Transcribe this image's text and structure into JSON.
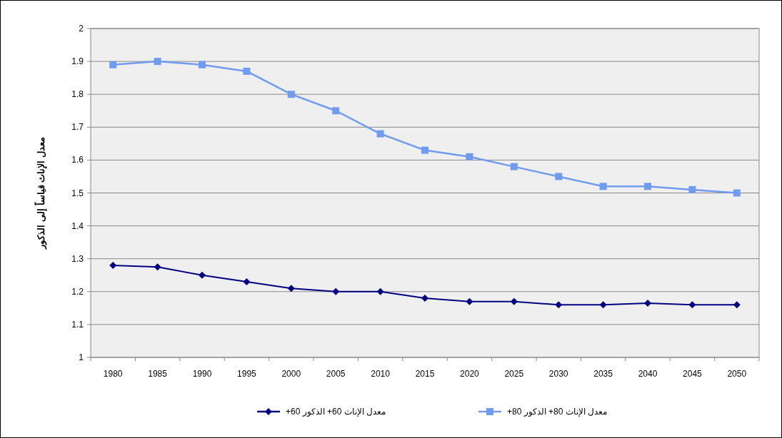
{
  "chart_data": {
    "type": "line",
    "ylabel": "معدل الإناث قياساً إلى الذكور",
    "categories": [
      "1980",
      "1985",
      "1990",
      "1995",
      "2000",
      "2005",
      "2010",
      "2015",
      "2020",
      "2025",
      "2030",
      "2035",
      "2040",
      "2045",
      "2050"
    ],
    "series": [
      {
        "name": "معدل الإناث 60+ الذكور 60+",
        "color": "#000080",
        "marker": "diamond",
        "values": [
          1.28,
          1.275,
          1.25,
          1.23,
          1.21,
          1.2,
          1.2,
          1.18,
          1.17,
          1.17,
          1.16,
          1.16,
          1.165,
          1.16,
          1.16
        ]
      },
      {
        "name": "معدل الإناث 80+ الذكور 80+",
        "color": "#6f9cf0",
        "marker": "square",
        "values": [
          1.89,
          1.9,
          1.89,
          1.87,
          1.8,
          1.75,
          1.68,
          1.63,
          1.61,
          1.58,
          1.55,
          1.52,
          1.52,
          1.51,
          1.5
        ]
      }
    ],
    "ylim": [
      1,
      2
    ],
    "yticks": [
      1,
      1.1,
      1.2,
      1.3,
      1.4,
      1.5,
      1.6,
      1.7,
      1.8,
      1.9,
      2
    ],
    "grid": "y",
    "legend": "bottom"
  }
}
